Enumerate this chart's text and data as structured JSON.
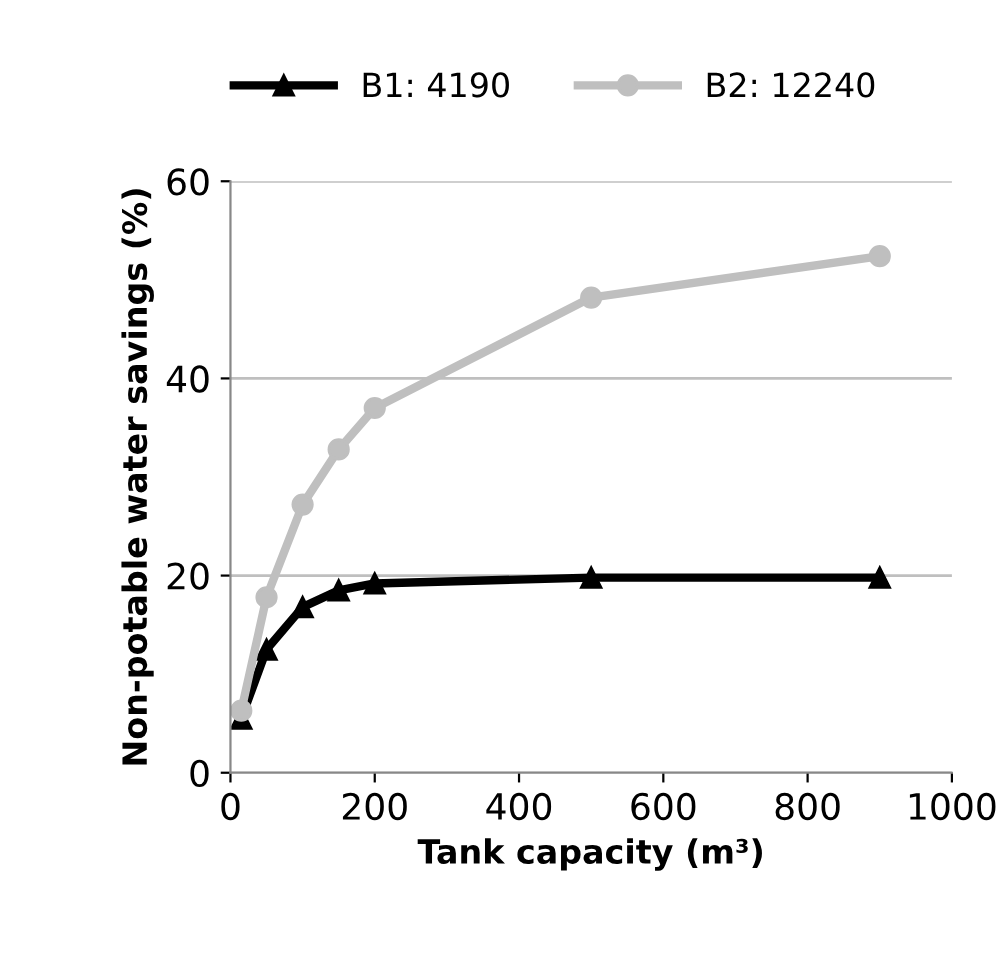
{
  "chart_data": {
    "type": "line",
    "xlabel": "Tank capacity (m³)",
    "ylabel": "Non-potable water savings (%)",
    "x": [
      15,
      50,
      100,
      150,
      200,
      500,
      900
    ],
    "series": [
      {
        "name": "B1: 4190",
        "color": "#000000",
        "marker": "triangle",
        "values": [
          5.5,
          12.5,
          16.8,
          18.5,
          19.2,
          19.8,
          19.8
        ]
      },
      {
        "name": "B2: 12240",
        "color": "#bfbfbf",
        "marker": "circle",
        "values": [
          6.3,
          17.8,
          27.2,
          32.8,
          37.0,
          48.2,
          52.4
        ]
      }
    ],
    "xlim": [
      0,
      1000
    ],
    "xticks": [
      0,
      200,
      400,
      600,
      800,
      1000
    ],
    "ylim": [
      0,
      60
    ],
    "yticks": [
      0,
      20,
      40,
      60
    ],
    "grid": "y",
    "legend": "top",
    "line_style": "solid"
  }
}
